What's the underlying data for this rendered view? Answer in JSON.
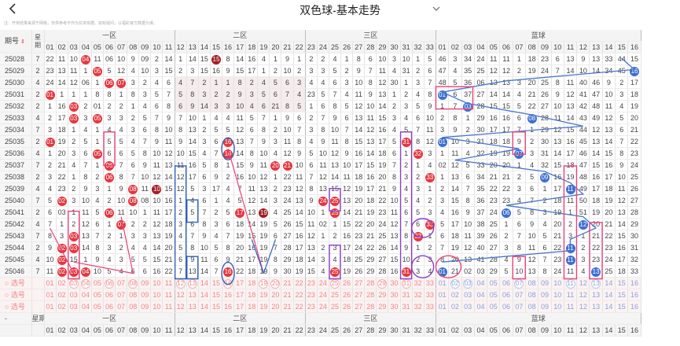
{
  "header": {
    "title": "双色球-基本走势",
    "disclaimer": "注：开奖结果来源于网络，仅供参考不作为兑奖依据。如有疑问，以福彩官方数据为准。"
  },
  "columns": {
    "issue_label": "期号",
    "week_label": "星期",
    "zones": [
      "一区",
      "二区",
      "三区",
      "蓝球"
    ],
    "red_numbers": [
      "01",
      "02",
      "03",
      "04",
      "05",
      "06",
      "07",
      "08",
      "09",
      "10",
      "11",
      "12",
      "13",
      "14",
      "15",
      "16",
      "17",
      "18",
      "19",
      "20",
      "21",
      "22",
      "23",
      "24",
      "25",
      "26",
      "27",
      "28",
      "29",
      "30",
      "31",
      "32",
      "33"
    ],
    "blue_numbers": [
      "01",
      "02",
      "03",
      "04",
      "05",
      "06",
      "07",
      "08",
      "09",
      "10",
      "11",
      "12",
      "13",
      "14",
      "15",
      "16"
    ]
  },
  "rows": [
    {
      "issue": "25028",
      "week": "7",
      "red": [
        "22",
        "11",
        "10",
        "04",
        "11",
        "06",
        "10",
        "9",
        "09",
        "2",
        "14",
        "1",
        "14",
        "15",
        "15",
        "8",
        "14",
        "16",
        "4",
        "1",
        "9",
        "1",
        "2",
        "2",
        "4",
        "1",
        "8",
        "6",
        "10",
        "3",
        "10",
        "1",
        "5"
      ],
      "blue": [
        "46",
        "3",
        "34",
        "24",
        "11",
        "11",
        "1",
        "18",
        "23",
        "6",
        "13",
        "9",
        "13",
        "33",
        "44",
        "15"
      ]
    },
    {
      "issue": "25029",
      "week": "2",
      "red": [
        "23",
        "13",
        "11",
        "1",
        "05",
        "5",
        "12",
        "4",
        "10",
        "3",
        "15",
        "2",
        "3",
        "15",
        "16",
        "9",
        "15",
        "17",
        "1",
        "2",
        "10",
        "2",
        "3",
        "3",
        "5",
        "2",
        "9",
        "7",
        "11",
        "4",
        "31",
        "2",
        "6"
      ],
      "blue": [
        "47",
        "4",
        "35",
        "25",
        "12",
        "12",
        "2",
        "19",
        "24",
        "7",
        "14",
        "10",
        "14",
        "34",
        "45",
        "16"
      ]
    },
    {
      "issue": "25030",
      "week": "4",
      "red": [
        "24",
        "14",
        "12",
        "06",
        "1",
        "06",
        "07",
        "3",
        "2",
        "4",
        "6",
        "4",
        "7",
        "2",
        "1",
        "1",
        "8",
        "2",
        "4",
        "5",
        "6",
        "3",
        "4",
        "4",
        "6",
        "3",
        "10",
        "8",
        "12",
        "30",
        "1",
        "3",
        "7"
      ],
      "blue": [
        "48",
        "5",
        "36",
        "06",
        "13",
        "13",
        "3",
        "20",
        "25",
        "8",
        "11",
        "40",
        "46",
        "9",
        "2",
        "17"
      ]
    },
    {
      "issue": "25031",
      "week": "2",
      "red": [
        "01",
        "1",
        "1",
        "1",
        "8",
        "8",
        "1",
        "8",
        "3",
        "5",
        "7",
        "5",
        "8",
        "3",
        "2",
        "2",
        "9",
        "3",
        "5",
        "6",
        "7",
        "4",
        "23",
        "5",
        "7",
        "4",
        "11",
        "9",
        "13",
        "1",
        "2",
        "4",
        "8"
      ],
      "blue": [
        "01",
        "6",
        "37",
        "27",
        "14",
        "14",
        "4",
        "21",
        "26",
        "9",
        "12",
        "41",
        "47",
        "10",
        "3",
        "18"
      ]
    },
    {
      "issue": "25032",
      "week": "2",
      "red": [
        "1",
        "16",
        "03",
        "2",
        "01",
        "2",
        "2",
        "1",
        "4",
        "6",
        "8",
        "6",
        "9",
        "14",
        "3",
        "3",
        "10",
        "4",
        "6",
        "21",
        "8",
        "5",
        "1",
        "6",
        "8",
        "5",
        "12",
        "10",
        "14",
        "2",
        "3",
        "5",
        "9"
      ],
      "blue": [
        "1",
        "7",
        "03",
        "28",
        "15",
        "15",
        "5",
        "22",
        "27",
        "10",
        "13",
        "42",
        "48",
        "11",
        "4",
        "19"
      ]
    },
    {
      "issue": "25033",
      "week": "4",
      "red": [
        "2",
        "17",
        "03",
        "3",
        "05",
        "3",
        "3",
        "2",
        "5",
        "7",
        "9",
        "7",
        "10",
        "1",
        "4",
        "4",
        "11",
        "5",
        "7",
        "1",
        "9",
        "6",
        "2",
        "7",
        "9",
        "6",
        "13",
        "11",
        "15",
        "3",
        "4",
        "6",
        "10"
      ],
      "blue": [
        "2",
        "8",
        "1",
        "29",
        "16",
        "16",
        "6",
        "08",
        "28",
        "11",
        "14",
        "43",
        "49",
        "12",
        "5",
        "20"
      ]
    },
    {
      "issue": "25034",
      "week": "7",
      "red": [
        "3",
        "18",
        "1",
        "4",
        "1",
        "4",
        "4",
        "3",
        "6",
        "8",
        "10",
        "8",
        "13",
        "2",
        "5",
        "5",
        "12",
        "6",
        "8",
        "2",
        "10",
        "7",
        "3",
        "8",
        "10",
        "7",
        "14",
        "12",
        "16",
        "4",
        "5",
        "7",
        "11"
      ],
      "blue": [
        "3",
        "9",
        "2",
        "30",
        "17",
        "17",
        "7",
        "1",
        "29",
        "12",
        "15",
        "44",
        "12",
        "13",
        "6",
        "21"
      ]
    },
    {
      "issue": "25035",
      "week": "2",
      "red": [
        "01",
        "19",
        "2",
        "5",
        "1",
        "5",
        "5",
        "4",
        "7",
        "9",
        "11",
        "9",
        "14",
        "3",
        "6",
        "16",
        "13",
        "7",
        "9",
        "3",
        "11",
        "8",
        "4",
        "9",
        "11",
        "8",
        "15",
        "13",
        "17",
        "5",
        "31",
        "8",
        "12"
      ],
      "blue": [
        "01",
        "10",
        "3",
        "31",
        "18",
        "18",
        "9",
        "2",
        "30",
        "13",
        "16",
        "45",
        "13",
        "14",
        "7",
        "22"
      ]
    },
    {
      "issue": "25036",
      "week": "4",
      "red": [
        "1",
        "20",
        "3",
        "6",
        "05",
        "6",
        "6",
        "5",
        "8",
        "10",
        "12",
        "10",
        "15",
        "4",
        "7",
        "16",
        "14",
        "8",
        "10",
        "4",
        "12",
        "9",
        "5",
        "10",
        "12",
        "9",
        "16",
        "14",
        "18",
        "6",
        "1",
        "32",
        "3"
      ],
      "blue": [
        "1",
        "11",
        "4",
        "32",
        "19",
        "19",
        "07",
        "3",
        "31",
        "14",
        "17",
        "46",
        "14",
        "15",
        "8",
        "23"
      ]
    },
    {
      "issue": "25037",
      "week": "7",
      "red": [
        "2",
        "21",
        "4",
        "7",
        "1",
        "06",
        "7",
        "6",
        "9",
        "11",
        "13",
        "11",
        "16",
        "5",
        "8",
        "1",
        "15",
        "9",
        "11",
        "20",
        "21",
        "10",
        "6",
        "11",
        "13",
        "10",
        "17",
        "15",
        "19",
        "7",
        "2",
        "1",
        "4"
      ],
      "blue": [
        "02",
        "12",
        "5",
        "33",
        "20",
        "20",
        "1",
        "4",
        "32",
        "15",
        "18",
        "47",
        "15",
        "16",
        "9",
        "24"
      ]
    },
    {
      "issue": "25038",
      "week": "2",
      "red": [
        "3",
        "22",
        "1",
        "8",
        "2",
        "06",
        "8",
        "7",
        "10",
        "12",
        "14",
        "12",
        "17",
        "6",
        "9",
        "2",
        "16",
        "10",
        "12",
        "1",
        "22",
        "11",
        "7",
        "12",
        "14",
        "11",
        "18",
        "16",
        "20",
        "8",
        "3",
        "2",
        "33"
      ],
      "blue": [
        "1",
        "13",
        "6",
        "34",
        "21",
        "21",
        "2",
        "5",
        "09",
        "16",
        "19",
        "48",
        "16",
        "17",
        "10",
        "25"
      ]
    },
    {
      "issue": "25039",
      "week": "4",
      "red": [
        "4",
        "23",
        "2",
        "9",
        "3",
        "1",
        "9",
        "08",
        "11",
        "10",
        "15",
        "12",
        "5",
        "3",
        "17",
        "4",
        "7",
        "11",
        "13",
        "2",
        "23",
        "12",
        "8",
        "13",
        "15",
        "12",
        "19",
        "17",
        "21",
        "9",
        "4",
        "3",
        "1"
      ],
      "blue": [
        "2",
        "14",
        "7",
        "35",
        "22",
        "22",
        "3",
        "6",
        "1",
        "17",
        "11",
        "49",
        "17",
        "18",
        "11",
        "26"
      ]
    },
    {
      "issue": "25040",
      "week": "7",
      "red": [
        "5",
        "02",
        "3",
        "10",
        "4",
        "2",
        "10",
        "08",
        "08",
        "10",
        "16",
        "1",
        "4",
        "6",
        "1",
        "4",
        "5",
        "12",
        "14",
        "3",
        "24",
        "13",
        "9",
        "24",
        "25",
        "13",
        "20",
        "18",
        "22",
        "10",
        "5",
        "4",
        "2"
      ],
      "blue": [
        "3",
        "15",
        "8",
        "36",
        "23",
        "23",
        "4",
        "7",
        "2",
        "18",
        "11",
        "50",
        "18",
        "19",
        "12",
        "27"
      ]
    },
    {
      "issue": "25041",
      "week": "2",
      "red": [
        "6",
        "03",
        "1",
        "11",
        "5",
        "06",
        "11",
        "10",
        "1",
        "11",
        "17",
        "2",
        "5",
        "7",
        "2",
        "5",
        "17",
        "13",
        "19",
        "4",
        "25",
        "14",
        "10",
        "1",
        "25",
        "14",
        "21",
        "19",
        "23",
        "11",
        "6",
        "5",
        "3"
      ],
      "blue": [
        "4",
        "16",
        "9",
        "37",
        "24",
        "06",
        "5",
        "8",
        "3",
        "19",
        "1",
        "51",
        "19",
        "20",
        "13",
        "28"
      ]
    },
    {
      "issue": "25042",
      "week": "4",
      "red": [
        "7",
        "1",
        "2",
        "12",
        "6",
        "1",
        "07",
        "2",
        "2",
        "12",
        "18",
        "3",
        "6",
        "8",
        "3",
        "6",
        "18",
        "14",
        "19",
        "5",
        "26",
        "15",
        "11",
        "02",
        "1",
        "15",
        "22",
        "20",
        "24",
        "12",
        "7",
        "6",
        "33"
      ],
      "blue": [
        "5",
        "17",
        "10",
        "38",
        "25",
        "1",
        "6",
        "9",
        "4",
        "20",
        "2",
        "12",
        "20",
        "21",
        "14",
        "29"
      ]
    },
    {
      "issue": "25043",
      "week": "7",
      "red": [
        "8",
        "3",
        "03",
        "13",
        "7",
        "2",
        "1",
        "3",
        "3",
        "13",
        "19",
        "4",
        "7",
        "9",
        "4",
        "7",
        "19",
        "15",
        "19",
        "6",
        "27",
        "16",
        "12",
        "1",
        "2",
        "16",
        "23",
        "21",
        "25",
        "13",
        "8",
        "32",
        "1"
      ],
      "blue": [
        "6",
        "18",
        "11",
        "39",
        "26",
        "2",
        "7",
        "10",
        "5",
        "21",
        "3",
        "1",
        "21",
        "22",
        "15",
        "30"
      ]
    },
    {
      "issue": "25044",
      "week": "2",
      "red": [
        "9",
        "02",
        "03",
        "14",
        "8",
        "3",
        "2",
        "4",
        "4",
        "14",
        "20",
        "5",
        "8",
        "10",
        "5",
        "8",
        "20",
        "16",
        "19",
        "7",
        "28",
        "17",
        "13",
        "2",
        "3",
        "17",
        "24",
        "22",
        "26",
        "14",
        "9",
        "1",
        "2"
      ],
      "blue": [
        "7",
        "19",
        "12",
        "40",
        "27",
        "3",
        "8",
        "11",
        "6",
        "22",
        "11",
        "2",
        "22",
        "23",
        "16",
        "31"
      ]
    },
    {
      "issue": "25045",
      "week": "4",
      "red": [
        "10",
        "02",
        "15",
        "1",
        "9",
        "4",
        "3",
        "5",
        "5",
        "15",
        "21",
        "6",
        "9",
        "11",
        "6",
        "9",
        "21",
        "17",
        "19",
        "8",
        "29",
        "18",
        "14",
        "3",
        "4",
        "18",
        "25",
        "29",
        "27",
        "15",
        "10",
        "2",
        "3"
      ],
      "blue": [
        "8",
        "20",
        "13",
        "41",
        "28",
        "4",
        "9",
        "12",
        "7",
        "23",
        "11",
        "3",
        "23",
        "24",
        "17",
        "32"
      ]
    },
    {
      "issue": "25046",
      "week": "7",
      "red": [
        "11",
        "02",
        "03",
        "04",
        "10",
        "5",
        "4",
        "6",
        "6",
        "16",
        "22",
        "7",
        "13",
        "14",
        "7",
        "16",
        "22",
        "18",
        "19",
        "9",
        "30",
        "19",
        "15",
        "4",
        "25",
        "19",
        "26",
        "29",
        "28",
        "16",
        "31",
        "3",
        "4"
      ],
      "blue": [
        "01",
        "21",
        "02",
        "03",
        "29",
        "5",
        "10",
        "13",
        "8",
        "24",
        "11",
        "4",
        "13",
        "25",
        "18",
        "33"
      ]
    }
  ],
  "balls": {
    "25028": {
      "red": [
        "04",
        "15"
      ],
      "blue": [
        "15"
      ]
    },
    "25029": {
      "red": [
        "05",
        "15"
      ],
      "blue": [
        "16"
      ]
    },
    "25030": {
      "red": [
        "06",
        "07"
      ],
      "blue": [
        "06"
      ]
    },
    "25031": {
      "red": [
        "01"
      ],
      "blue": [
        "01"
      ]
    },
    "25032": {
      "red": [
        "03",
        "01"
      ],
      "blue": [
        "03"
      ]
    },
    "25033": {
      "red": [
        "03",
        "05"
      ],
      "blue": [
        "08"
      ]
    },
    "25034": {
      "red": [],
      "blue": [
        "12"
      ]
    },
    "25035": {
      "red": [
        "01",
        "16",
        "31"
      ],
      "blue": [
        "01"
      ]
    },
    "25036": {
      "red": [
        "05",
        "16",
        "32"
      ],
      "blue": [
        "07"
      ]
    },
    "25037": {
      "red": [
        "06",
        "20",
        "21"
      ],
      "blue": [
        "02"
      ]
    },
    "25038": {
      "red": [
        "06",
        "33"
      ],
      "blue": [
        "09"
      ]
    },
    "25039": {
      "red": [
        "08",
        "10"
      ],
      "blue": [
        "11"
      ]
    },
    "25040": {
      "red": [
        "02",
        "08",
        "08",
        "24",
        "25"
      ],
      "blue": [
        "12"
      ]
    },
    "25041": {
      "red": [
        "03",
        "06",
        "17",
        "19",
        "25"
      ],
      "blue": [
        "06",
        "11"
      ]
    },
    "25042": {
      "red": [
        "07",
        "02",
        "33"
      ],
      "blue": [
        "12"
      ]
    },
    "25043": {
      "red": [
        "03",
        "32"
      ],
      "blue": [
        "13"
      ]
    },
    "25044": {
      "red": [
        "02",
        "03"
      ],
      "blue": [
        "11"
      ]
    },
    "25045": {
      "red": [
        "02",
        "29"
      ],
      "blue": [
        "11"
      ]
    },
    "25046": {
      "red": [
        "02",
        "03",
        "04",
        "16",
        "25",
        "31"
      ],
      "blue": [
        "01",
        "02",
        "03",
        "13"
      ]
    }
  },
  "select_label": "选号",
  "footer": {
    "issue": "-",
    "week": "星期"
  }
}
